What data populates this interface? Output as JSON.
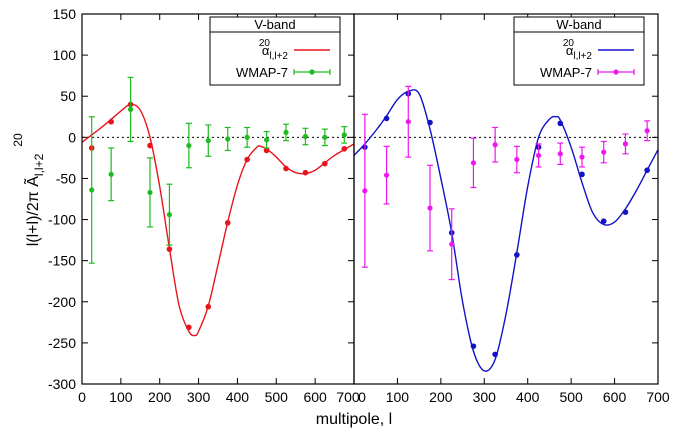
{
  "chart_data": {
    "type": "line",
    "xlabel": "multipole, l",
    "ylabel": "l(l+l)/2π Ã",
    "ylabel_superscript": "20",
    "ylabel_subscript": "l,l+2",
    "ylim": [
      -300,
      150
    ],
    "yticks": [
      "150",
      "100",
      "50",
      "0",
      "-50",
      "-100",
      "-150",
      "-200",
      "-250",
      "-300"
    ],
    "yticks_values": [
      150,
      100,
      50,
      0,
      -50,
      -100,
      -150,
      -200,
      -250,
      -300
    ],
    "zero_line": "dotted",
    "grid": false,
    "panels": [
      {
        "name": "V-band",
        "title": "V-band",
        "xlim": [
          0,
          700
        ],
        "xticks": [
          "0",
          "100",
          "200",
          "300",
          "400",
          "500",
          "600",
          "700"
        ],
        "legend_placement": "top-right",
        "series": [
          {
            "name": "α",
            "name_superscript": "20",
            "name_subscript": "l,l+2",
            "style": "line+points",
            "color": "#e8141c",
            "x": [
              25,
              75,
              125,
              175,
              225,
              275,
              325,
              375,
              425,
              475,
              525,
              575,
              625,
              675
            ],
            "y": [
              -13,
              19,
              40,
              -10,
              -136,
              -231,
              -206,
              -104,
              -27,
              -16,
              -38,
              -43,
              -32,
              -14
            ],
            "curve_x": [
              -20,
              0,
              50,
              100,
              125,
              150,
              175,
              200,
              225,
              250,
              275,
              290,
              300,
              325,
              350,
              375,
              400,
              425,
              450,
              460,
              475,
              500,
              525,
              550,
              575,
              600,
              625,
              650,
              700
            ],
            "curve_y": [
              -15,
              -6,
              12,
              32,
              40,
              33,
              0,
              -60,
              -135,
              -205,
              -236,
              -241,
              -236,
              -205,
              -155,
              -103,
              -58,
              -27,
              -12,
              -11,
              -14,
              -24,
              -36,
              -43,
              -44,
              -40,
              -31,
              -22,
              -8
            ]
          },
          {
            "name": "WMAP-7",
            "style": "points+errorbars",
            "color": "#1fba1f",
            "x": [
              25,
              75,
              125,
              175,
              225,
              275,
              325,
              375,
              425,
              475,
              525,
              575,
              625,
              675
            ],
            "y": [
              -64,
              -45,
              34,
              -67,
              -94,
              -10,
              -4,
              -2,
              0,
              -3,
              6,
              1,
              0,
              3
            ],
            "yerr": [
              89,
              32,
              39,
              42,
              37,
              27,
              19,
              14,
              12,
              10,
              10,
              10,
              10,
              10
            ]
          }
        ]
      },
      {
        "name": "W-band",
        "title": "W-band",
        "xlim": [
          0,
          700
        ],
        "xticks": [
          "0",
          "100",
          "200",
          "300",
          "400",
          "500",
          "600",
          "700"
        ],
        "legend_placement": "top-right",
        "series": [
          {
            "name": "α",
            "name_superscript": "20",
            "name_subscript": "l,l+2",
            "style": "line+points",
            "color": "#1212c8",
            "x": [
              25,
              75,
              125,
              175,
              225,
              275,
              325,
              375,
              425,
              475,
              525,
              575,
              625,
              675
            ],
            "y": [
              -12,
              23,
              53,
              18,
              -116,
              -254,
              -264,
              -143,
              -12,
              17,
              -45,
              -102,
              -91,
              -40
            ],
            "curve_x": [
              0,
              25,
              50,
              75,
              100,
              125,
              150,
              175,
              200,
              225,
              250,
              275,
              300,
              325,
              350,
              375,
              400,
              425,
              450,
              465,
              475,
              500,
              525,
              550,
              575,
              600,
              625,
              650,
              675,
              700
            ],
            "curve_y": [
              -22,
              -8,
              8,
              26,
              46,
              56,
              53,
              10,
              -50,
              -116,
              -200,
              -260,
              -284,
              -270,
              -215,
              -140,
              -60,
              0,
              22,
              25,
              21,
              -12,
              -55,
              -92,
              -106,
              -103,
              -87,
              -65,
              -40,
              -15
            ]
          },
          {
            "name": "WMAP-7",
            "style": "points+errorbars",
            "color": "#ee18ee",
            "x": [
              25,
              75,
              125,
              175,
              225,
              275,
              325,
              375,
              425,
              475,
              525,
              575,
              625,
              675
            ],
            "y": [
              -65,
              -46,
              19,
              -86,
              -130,
              -31,
              -9,
              -27,
              -22,
              -20,
              -24,
              -18,
              -8,
              8
            ],
            "yerr": [
              93,
              35,
              43,
              52,
              43,
              30,
              21,
              16,
              14,
              13,
              12,
              13,
              12,
              12
            ]
          }
        ]
      }
    ]
  }
}
